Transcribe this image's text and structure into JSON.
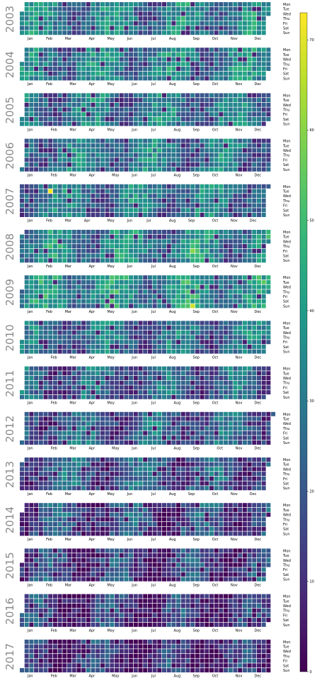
{
  "chart_data": {
    "type": "heatmap",
    "title": "",
    "years": [
      2003,
      2004,
      2005,
      2006,
      2007,
      2008,
      2009,
      2010,
      2011,
      2012,
      2013,
      2014,
      2015,
      2016,
      2017
    ],
    "month_labels": [
      "Jan",
      "Feb",
      "Mar",
      "Apr",
      "May",
      "Jun",
      "Jul",
      "Aug",
      "Sep",
      "Oct",
      "Nov",
      "Dec"
    ],
    "day_labels": [
      "Mon",
      "Tue",
      "Wed",
      "Thu",
      "Fri",
      "Sat",
      "Sun"
    ],
    "colormap": "viridis",
    "value_range": [
      0,
      73
    ],
    "colorbar_ticks": [
      0,
      10,
      20,
      30,
      40,
      50,
      60,
      70
    ],
    "year_mean_levels": {
      "2003": 30,
      "2004": 30,
      "2005": 28,
      "2006": 27,
      "2007": 28,
      "2008": 32,
      "2009": 34,
      "2010": 25,
      "2011": 22,
      "2012": 21,
      "2013": 19,
      "2014": 16,
      "2015": 13,
      "2016": 11,
      "2017": 10
    },
    "notable_values": [
      {
        "year": 2007,
        "month": "Feb",
        "value": 72
      },
      {
        "year": 2009,
        "month": "Sep",
        "value": 68
      },
      {
        "year": 2008,
        "month": "Sep",
        "value": 60
      }
    ],
    "grid": true
  }
}
